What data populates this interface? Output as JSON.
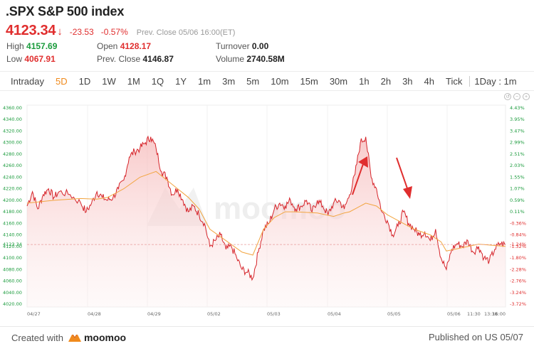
{
  "header": {
    "title": ".SPX S&P 500 index",
    "last": "4123.34",
    "change": "-23.53",
    "change_pct": "-0.57%",
    "prev_close_note": "Prev. Close  05/06 16:00(ET)"
  },
  "stats": {
    "high_label": "High",
    "high_value": "4157.69",
    "low_label": "Low",
    "low_value": "4067.91",
    "open_label": "Open",
    "open_value": "4128.17",
    "prev_close_label": "Prev. Close",
    "prev_close_value": "4146.87",
    "turnover_label": "Turnover",
    "turnover_value": "0.00",
    "volume_label": "Volume",
    "volume_value": "2740.58M"
  },
  "tabs": [
    "Intraday",
    "5D",
    "1D",
    "1W",
    "1M",
    "1Q",
    "1Y",
    "1m",
    "3m",
    "5m",
    "10m",
    "15m",
    "30m",
    "1h",
    "2h",
    "3h",
    "4h",
    "Tick",
    "1Day : 1m"
  ],
  "active_tab": "5D",
  "colors": {
    "accent": "#f08a1c",
    "up": "#1a9b3c",
    "down": "#e02e2e",
    "price_line": "#d6242a",
    "avg_line": "#f2a540"
  },
  "icons": [
    "undo-icon",
    "zoom-out-icon",
    "zoom-in-icon"
  ],
  "chart_data": {
    "type": "line",
    "y_left_ticks": [
      "4360.00",
      "4340.00",
      "4320.00",
      "4300.00",
      "4280.00",
      "4260.00",
      "4240.00",
      "4220.00",
      "4200.00",
      "4180.00",
      "4160.00",
      "4140.00",
      "4120.00",
      "4100.00",
      "4080.00",
      "4060.00",
      "4040.00",
      "4020.00"
    ],
    "y_right_ticks": [
      "4.43%",
      "3.95%",
      "3.47%",
      "2.99%",
      "2.51%",
      "2.03%",
      "1.55%",
      "1.07%",
      "0.59%",
      "0.11%",
      "-0.36%",
      "-0.84%",
      "-1.32%",
      "-1.80%",
      "-2.28%",
      "-2.76%",
      "-3.24%",
      "-3.72%"
    ],
    "x_ticks": [
      "04/27",
      "04/28",
      "04/29",
      "05/02",
      "05/03",
      "05/04",
      "05/05",
      "05/06",
      "11:30",
      "13:30",
      "16:00"
    ],
    "current_price_label": "4123.34",
    "current_pct_label": "-1.24%",
    "ylim": [
      4020,
      4360
    ],
    "price_series": [
      [
        0,
        4190
      ],
      [
        1,
        4215
      ],
      [
        2,
        4185
      ],
      [
        3,
        4210
      ],
      [
        4,
        4220
      ],
      [
        5,
        4205
      ],
      [
        6,
        4215
      ],
      [
        8,
        4210
      ],
      [
        10,
        4195
      ],
      [
        11,
        4180
      ],
      [
        12,
        4195
      ],
      [
        13,
        4215
      ],
      [
        14,
        4205
      ],
      [
        15,
        4200
      ],
      [
        16,
        4205
      ],
      [
        17,
        4220
      ],
      [
        18,
        4235
      ],
      [
        19,
        4275
      ],
      [
        20,
        4285
      ],
      [
        21,
        4290
      ],
      [
        22,
        4300
      ],
      [
        23,
        4310
      ],
      [
        24,
        4290
      ],
      [
        25,
        4250
      ],
      [
        26,
        4240
      ],
      [
        27,
        4210
      ],
      [
        28,
        4220
      ],
      [
        29,
        4200
      ],
      [
        30,
        4180
      ],
      [
        31,
        4190
      ],
      [
        32,
        4175
      ],
      [
        33,
        4160
      ],
      [
        34,
        4120
      ],
      [
        35,
        4130
      ],
      [
        36,
        4140
      ],
      [
        37,
        4115
      ],
      [
        38,
        4120
      ],
      [
        39,
        4100
      ],
      [
        40,
        4080
      ],
      [
        41,
        4075
      ],
      [
        42,
        4065
      ],
      [
        43,
        4110
      ],
      [
        44,
        4150
      ],
      [
        45,
        4160
      ],
      [
        46,
        4185
      ],
      [
        47,
        4195
      ],
      [
        48,
        4190
      ],
      [
        49,
        4200
      ],
      [
        50,
        4185
      ],
      [
        51,
        4190
      ],
      [
        52,
        4200
      ],
      [
        53,
        4180
      ],
      [
        54,
        4200
      ],
      [
        55,
        4190
      ],
      [
        56,
        4175
      ],
      [
        57,
        4195
      ],
      [
        58,
        4200
      ],
      [
        59,
        4185
      ],
      [
        60,
        4210
      ],
      [
        61,
        4245
      ],
      [
        62,
        4300
      ],
      [
        63,
        4310
      ],
      [
        64,
        4240
      ],
      [
        65,
        4220
      ],
      [
        66,
        4180
      ],
      [
        67,
        4165
      ],
      [
        68,
        4140
      ],
      [
        69,
        4155
      ],
      [
        70,
        4180
      ],
      [
        71,
        4160
      ],
      [
        72,
        4150
      ],
      [
        73,
        4140
      ],
      [
        74,
        4145
      ],
      [
        75,
        4130
      ],
      [
        76,
        4150
      ],
      [
        77,
        4100
      ],
      [
        78,
        4080
      ],
      [
        79,
        4115
      ],
      [
        80,
        4125
      ],
      [
        81,
        4120
      ],
      [
        82,
        4130
      ],
      [
        83,
        4110
      ],
      [
        84,
        4120
      ],
      [
        85,
        4100
      ],
      [
        86,
        4095
      ],
      [
        87,
        4115
      ],
      [
        88,
        4125
      ],
      [
        89,
        4123
      ]
    ],
    "avg_series": [
      [
        0,
        4195
      ],
      [
        5,
        4200
      ],
      [
        10,
        4203
      ],
      [
        13,
        4202
      ],
      [
        15,
        4205
      ],
      [
        18,
        4220
      ],
      [
        21,
        4240
      ],
      [
        24,
        4250
      ],
      [
        26,
        4235
      ],
      [
        28,
        4220
      ],
      [
        30,
        4205
      ],
      [
        32,
        4185
      ],
      [
        34,
        4150
      ],
      [
        37,
        4130
      ],
      [
        40,
        4110
      ],
      [
        42,
        4105
      ],
      [
        44,
        4150
      ],
      [
        46,
        4170
      ],
      [
        48,
        4180
      ],
      [
        50,
        4180
      ],
      [
        54,
        4178
      ],
      [
        57,
        4172
      ],
      [
        59,
        4178
      ],
      [
        60,
        4180
      ],
      [
        61,
        4185
      ],
      [
        63,
        4195
      ],
      [
        65,
        4190
      ],
      [
        67,
        4175
      ],
      [
        70,
        4160
      ],
      [
        72,
        4150
      ],
      [
        75,
        4140
      ],
      [
        77,
        4128
      ],
      [
        78,
        4112
      ],
      [
        80,
        4116
      ],
      [
        84,
        4124
      ],
      [
        89,
        4120
      ]
    ]
  },
  "footer": {
    "created_label": "Created with",
    "logo_text": "moomoo",
    "published": "Published on US 05/07"
  },
  "watermark": "moomoo"
}
